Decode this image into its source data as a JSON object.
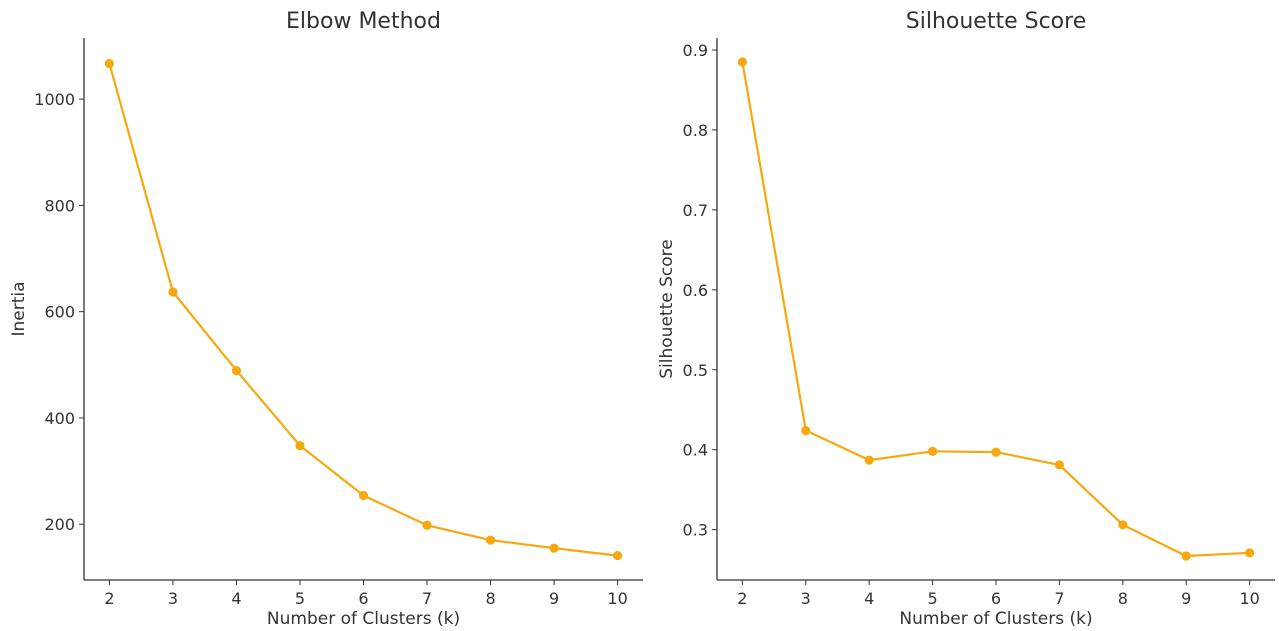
{
  "chart_data": [
    {
      "type": "line",
      "title": "Elbow Method",
      "xlabel": "Number of Clusters (k)",
      "ylabel": "Inertia",
      "x": [
        2,
        3,
        4,
        5,
        6,
        7,
        8,
        9,
        10
      ],
      "series": [
        {
          "values": [
            1067,
            637,
            489,
            348,
            254,
            198,
            170,
            155,
            141
          ]
        }
      ],
      "xlim": [
        1.6,
        10.4
      ],
      "ylim": [
        95,
        1115
      ],
      "xticks": [
        "2",
        "3",
        "4",
        "5",
        "6",
        "7",
        "8",
        "9",
        "10"
      ],
      "yticks": [
        200,
        400,
        600,
        800,
        1000
      ],
      "ytick_labels": [
        "200",
        "400",
        "600",
        "800",
        "1000"
      ],
      "grid": false,
      "color": "#F5A90F"
    },
    {
      "type": "line",
      "title": "Silhouette Score",
      "xlabel": "Number of Clusters (k)",
      "ylabel": "Silhouette Score",
      "x": [
        2,
        3,
        4,
        5,
        6,
        7,
        8,
        9,
        10
      ],
      "series": [
        {
          "values": [
            0.885,
            0.424,
            0.387,
            0.398,
            0.397,
            0.381,
            0.306,
            0.267,
            0.271
          ]
        }
      ],
      "xlim": [
        1.6,
        10.4
      ],
      "ylim": [
        0.237,
        0.915
      ],
      "xticks": [
        "2",
        "3",
        "4",
        "5",
        "6",
        "7",
        "8",
        "9",
        "10"
      ],
      "yticks": [
        0.3,
        0.4,
        0.5,
        0.6,
        0.7,
        0.8,
        0.9
      ],
      "ytick_labels": [
        "0.3",
        "0.4",
        "0.5",
        "0.6",
        "0.7",
        "0.8",
        "0.9"
      ],
      "grid": false,
      "color": "#F5A90F"
    }
  ]
}
